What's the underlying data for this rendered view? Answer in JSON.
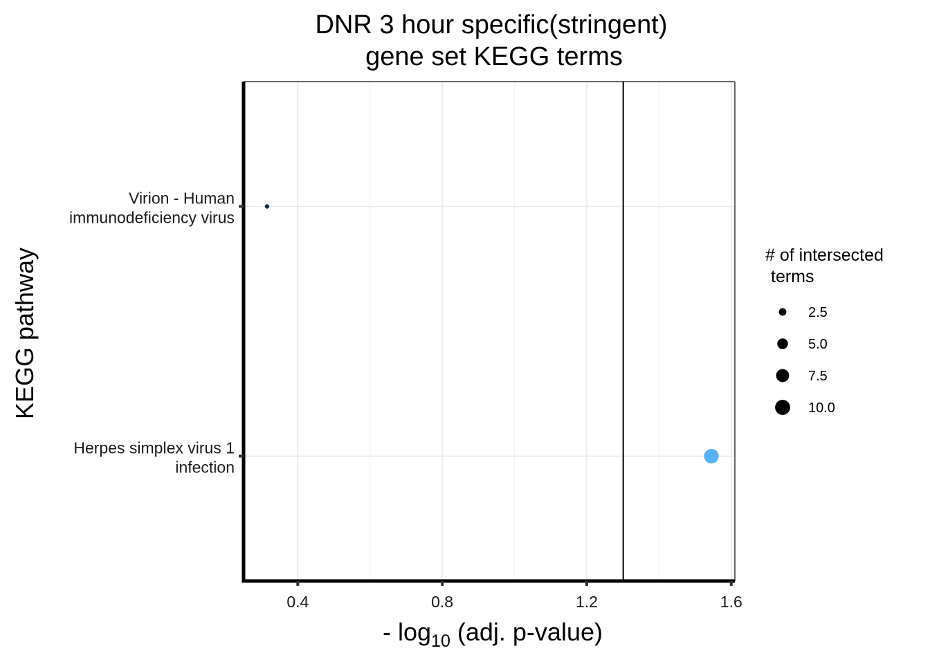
{
  "chart_data": {
    "type": "scatter",
    "title": [
      "DNR 3 hour specific(stringent)",
      "gene set KEGG terms"
    ],
    "xlabel_prefix": "- log",
    "xlabel_subscript": "10",
    "xlabel_suffix": "(adj. p-value)",
    "ylabel": "KEGG pathway",
    "xlim": [
      0.25,
      1.61
    ],
    "xticks": [
      "0.4",
      "0.8",
      "1.2",
      "1.6"
    ],
    "xtick_values": [
      0.4,
      0.8,
      1.2,
      1.6
    ],
    "threshold_x": 1.301,
    "grid": true,
    "categories": [
      {
        "lines": [
          "Virion - Human",
          "immunodeficiency virus"
        ]
      },
      {
        "lines": [
          "Herpes simplex virus 1",
          "infection"
        ]
      }
    ],
    "points": [
      {
        "category_index": 0,
        "x": 0.315,
        "size": 1,
        "color": "#132B43"
      },
      {
        "category_index": 1,
        "x": 1.545,
        "size": 11,
        "color": "#56B1F7"
      }
    ],
    "legend": {
      "title": [
        "# of intersected",
        "terms"
      ],
      "position": "right",
      "entries": [
        {
          "label": "2.5",
          "size": 2.5
        },
        {
          "label": "5.0",
          "size": 5.0
        },
        {
          "label": "7.5",
          "size": 7.5
        },
        {
          "label": "10.0",
          "size": 10.0
        }
      ]
    }
  }
}
